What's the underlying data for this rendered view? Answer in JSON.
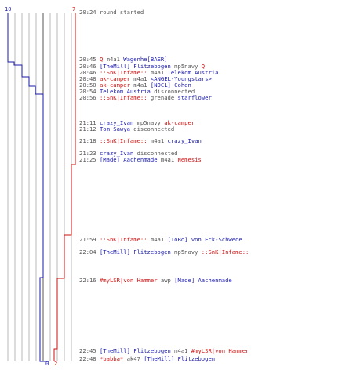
{
  "scores": {
    "top_blue": "10",
    "top_red": "7",
    "bottom_blue": "0",
    "bottom_red": "2",
    "blue_color": "#1a1aaa",
    "red_color": "#cc1111"
  },
  "events": [
    {
      "time": "20:24",
      "parts": [
        {
          "t": "round started",
          "c": "gray"
        }
      ]
    },
    {
      "time": "20:45",
      "parts": [
        {
          "t": "Q",
          "c": "red"
        },
        {
          "t": "m4a1",
          "c": "gray"
        },
        {
          "t": "Wagenhe[BAER]",
          "c": "blue"
        }
      ]
    },
    {
      "time": "20:46",
      "parts": [
        {
          "t": "[TheMill] Flitzebogen",
          "c": "blue"
        },
        {
          "t": "mp5navy",
          "c": "gray"
        },
        {
          "t": "Q",
          "c": "red"
        }
      ]
    },
    {
      "time": "20:46",
      "parts": [
        {
          "t": "::SnK|Infame::",
          "c": "red"
        },
        {
          "t": "m4a1",
          "c": "gray"
        },
        {
          "t": "Telekom Austria",
          "c": "blue"
        }
      ]
    },
    {
      "time": "20:48",
      "parts": [
        {
          "t": "ak-camper",
          "c": "red"
        },
        {
          "t": "m4a1",
          "c": "gray"
        },
        {
          "t": "<ANGEL-Youngstars>",
          "c": "blue"
        }
      ]
    },
    {
      "time": "20:50",
      "parts": [
        {
          "t": "ak-camper",
          "c": "red"
        },
        {
          "t": "m4a1",
          "c": "gray"
        },
        {
          "t": "[NOCL] Cohen",
          "c": "blue"
        }
      ]
    },
    {
      "time": "20:54",
      "parts": [
        {
          "t": "Telekom Austria",
          "c": "blue"
        },
        {
          "t": "disconnected",
          "c": "gray"
        }
      ]
    },
    {
      "time": "20:56",
      "parts": [
        {
          "t": "::SnK|Infame::",
          "c": "red"
        },
        {
          "t": "grenade",
          "c": "gray"
        },
        {
          "t": "starflower",
          "c": "blue"
        }
      ]
    },
    {
      "time": "21:11",
      "parts": [
        {
          "t": "crazy_Ivan",
          "c": "blue"
        },
        {
          "t": "mp5navy",
          "c": "gray"
        },
        {
          "t": "ak-camper",
          "c": "red"
        }
      ]
    },
    {
      "time": "21:12",
      "parts": [
        {
          "t": "Tom Sawya",
          "c": "blue"
        },
        {
          "t": "disconnected",
          "c": "gray"
        }
      ]
    },
    {
      "time": "21:18",
      "parts": [
        {
          "t": "::SnK|Infame::",
          "c": "red"
        },
        {
          "t": "m4a1",
          "c": "gray"
        },
        {
          "t": "crazy_Ivan",
          "c": "blue"
        }
      ]
    },
    {
      "time": "21:23",
      "parts": [
        {
          "t": "crazy_Ivan",
          "c": "blue"
        },
        {
          "t": "disconnected",
          "c": "gray"
        }
      ]
    },
    {
      "time": "21:25",
      "parts": [
        {
          "t": "[Made] Aachenmade",
          "c": "blue"
        },
        {
          "t": "m4a1",
          "c": "gray"
        },
        {
          "t": "Nemesis",
          "c": "red"
        }
      ]
    },
    {
      "time": "21:59",
      "parts": [
        {
          "t": "::SnK|Infame::",
          "c": "red"
        },
        {
          "t": "m4a1",
          "c": "gray"
        },
        {
          "t": "[ToBo] von Eck-Schwede",
          "c": "blue"
        }
      ]
    },
    {
      "time": "22:04",
      "parts": [
        {
          "t": "[TheMill] Flitzebogen",
          "c": "blue"
        },
        {
          "t": "mp5navy",
          "c": "gray"
        },
        {
          "t": "::SnK|Infame::",
          "c": "red"
        }
      ]
    },
    {
      "time": "22:16",
      "parts": [
        {
          "t": "#myLSR|von Hammer",
          "c": "red"
        },
        {
          "t": "awp",
          "c": "gray"
        },
        {
          "t": "[Made] Aachenmade",
          "c": "blue"
        }
      ]
    },
    {
      "time": "22:45",
      "parts": [
        {
          "t": "[TheMill] Flitzebogen",
          "c": "blue"
        },
        {
          "t": "m4a1",
          "c": "gray"
        },
        {
          "t": "#myLSR|von Hammer",
          "c": "red"
        }
      ]
    },
    {
      "time": "22:48",
      "parts": [
        {
          "t": "*babba*",
          "c": "red"
        },
        {
          "t": "ak47",
          "c": "gray"
        },
        {
          "t": "[TheMill] Flitzebogen",
          "c": "blue"
        }
      ]
    }
  ]
}
